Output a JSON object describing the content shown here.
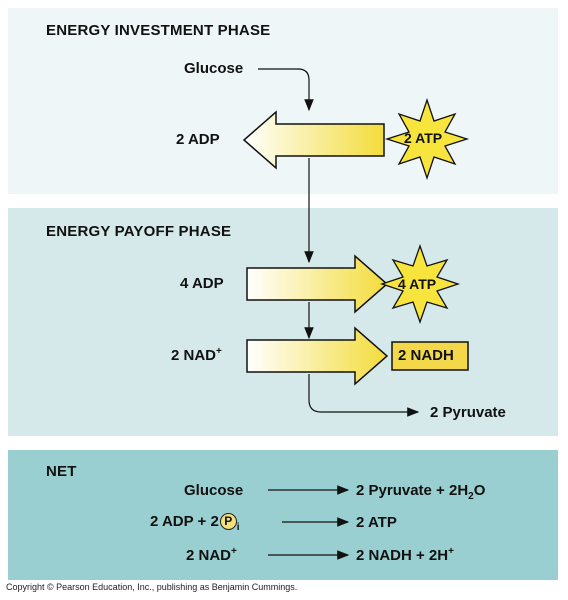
{
  "investment": {
    "heading": "ENERGY INVESTMENT PHASE",
    "glucose": "Glucose",
    "adp": "2 ADP",
    "atp": "2 ATP"
  },
  "payoff": {
    "heading": "ENERGY PAYOFF PHASE",
    "adp": "4 ADP",
    "atp": "4 ATP",
    "nad": "2 NAD",
    "nad_sup": "+",
    "nadh": "2 NADH",
    "pyruvate": "2 Pyruvate"
  },
  "net": {
    "heading": "NET",
    "row1_left": "Glucose",
    "row1_right": "2 Pyruvate + 2H",
    "row1_sub": "2",
    "row1_tail": "O",
    "row2_left": "2 ADP + 2",
    "row2_p": "P",
    "row2_sub": "i",
    "row2_right": "2 ATP",
    "row3_left": "2 NAD",
    "row3_sup": "+",
    "row3_right": "2 NADH + 2H",
    "row3_sup2": "+"
  },
  "copyright": "Copyright © Pearson Education, Inc., publishing as Benjamin Cummings.",
  "colors": {
    "investment_bg": "#eef6f7",
    "payoff_bg": "#d6e9ea",
    "net_bg": "#99cfd0",
    "arrow_yellow": "#f5e04a",
    "star_yellow": "#f7e43c"
  }
}
